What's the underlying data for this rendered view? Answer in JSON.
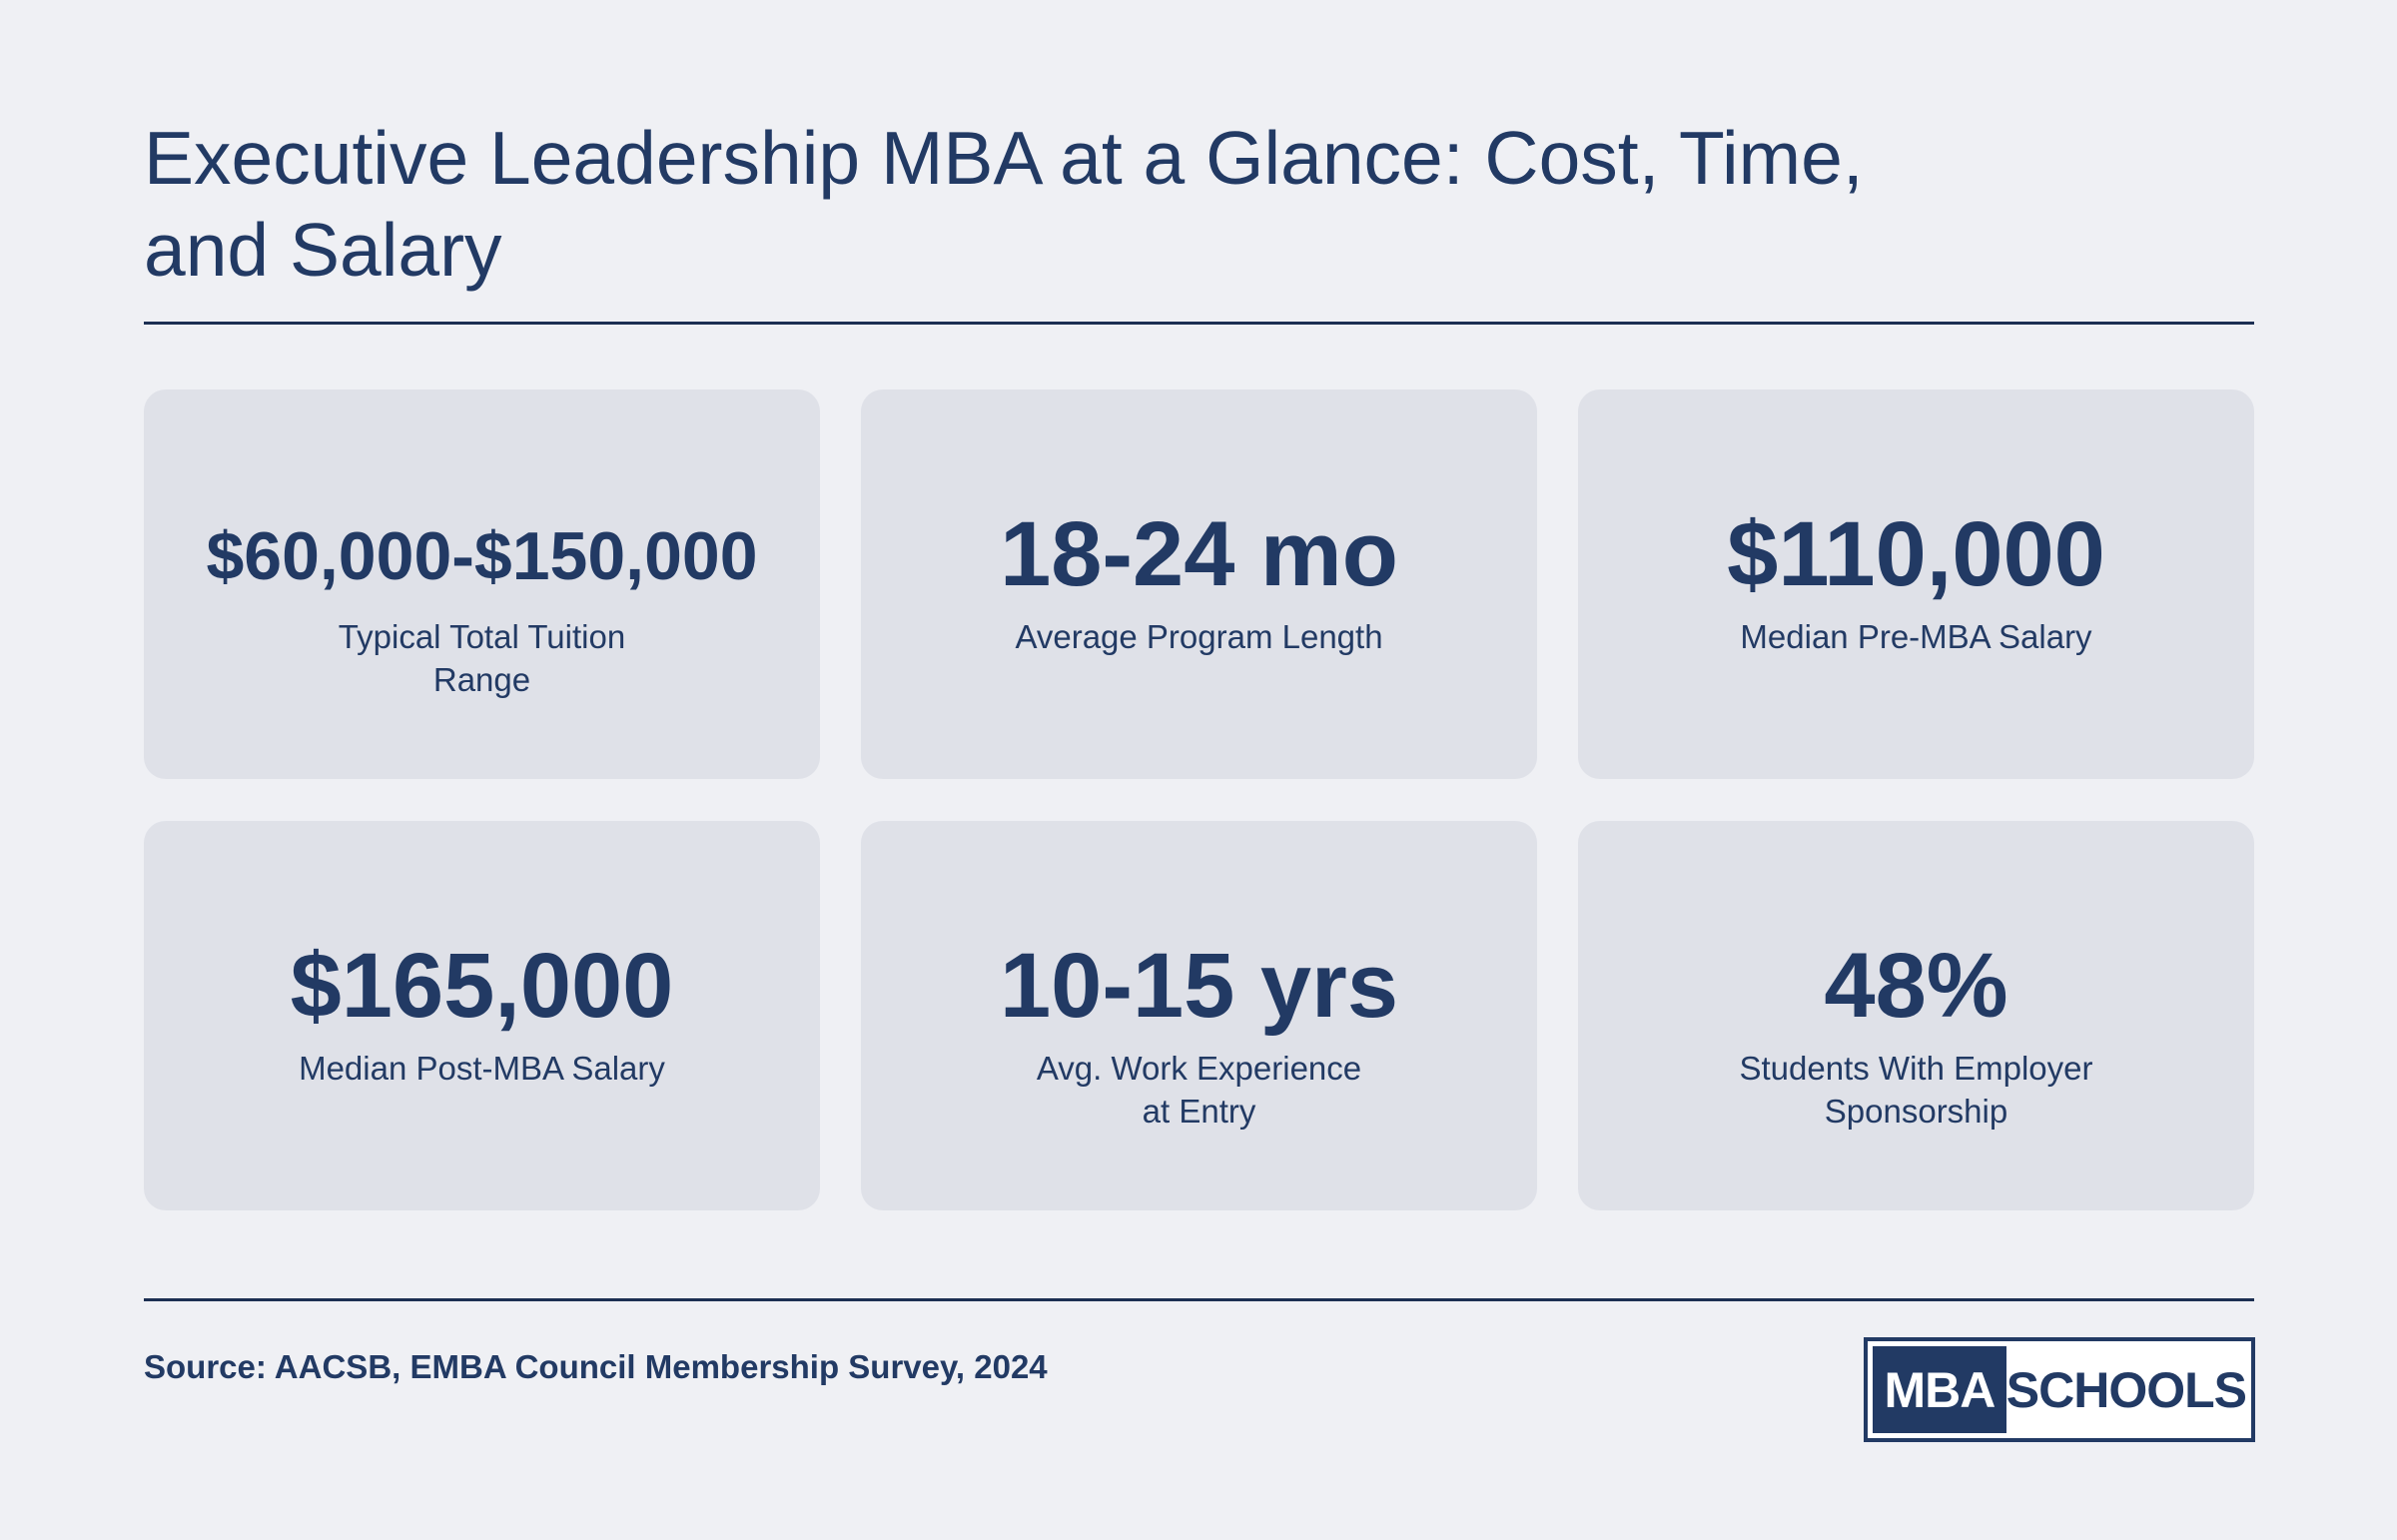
{
  "header": {
    "title": "Executive Leadership MBA at a Glance: Cost, Time, and Salary"
  },
  "stats": [
    {
      "value": "$60,000-$150,000",
      "label": "Typical Total Tuition Range"
    },
    {
      "value": "18-24 mo",
      "label": "Average Program Length"
    },
    {
      "value": "$110,000",
      "label": "Median Pre-MBA Salary"
    },
    {
      "value": "$165,000",
      "label": "Median Post-MBA Salary"
    },
    {
      "value": "10-15 yrs",
      "label": "Avg. Work Experience at Entry"
    },
    {
      "value": "48%",
      "label": "Students With Employer Sponsorship"
    }
  ],
  "footer": {
    "source": "Source: AACSB, EMBA Council Membership Survey, 2024",
    "logo_left": "MBA",
    "logo_right": "SCHOOLS"
  },
  "colors": {
    "background": "#eff0f4",
    "card": "#dfe1e8",
    "primary": "#223a64"
  }
}
